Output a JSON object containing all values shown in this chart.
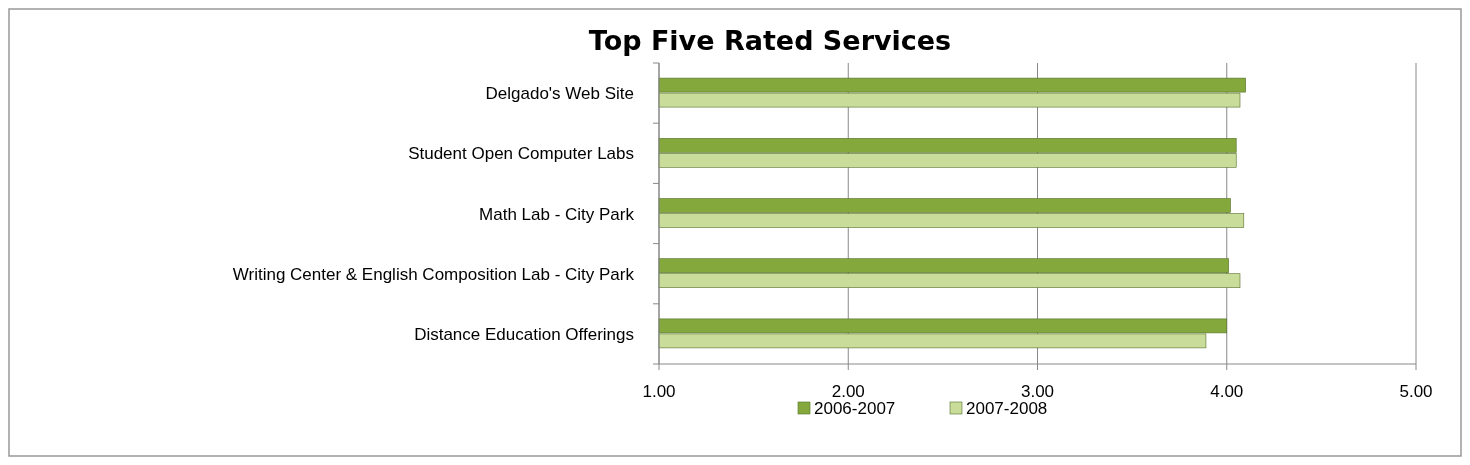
{
  "chart_data": {
    "type": "bar",
    "orientation": "horizontal",
    "title": "Top Five Rated Services",
    "categories": [
      "Delgado's Web Site",
      "Student Open Computer Labs",
      "Math Lab  - City Park",
      "Writing Center & English Composition Lab - City Park",
      "Distance Education Offerings"
    ],
    "series": [
      {
        "name": "2006-2007",
        "color": "#84a83c",
        "values": [
          4.1,
          4.05,
          4.02,
          4.01,
          4.0
        ]
      },
      {
        "name": "2007-2008",
        "color": "#c9dc9a",
        "values": [
          4.07,
          4.05,
          4.09,
          4.07,
          3.89
        ]
      }
    ],
    "xlim": [
      1,
      5
    ],
    "xticks": [
      {
        "value": 1,
        "label": "1.00"
      },
      {
        "value": 2,
        "label": "2.00"
      },
      {
        "value": 3,
        "label": "3.00"
      },
      {
        "value": 4,
        "label": "4.00"
      },
      {
        "value": 5,
        "label": "5.00"
      }
    ],
    "grid": "x",
    "legend": "bottom"
  }
}
